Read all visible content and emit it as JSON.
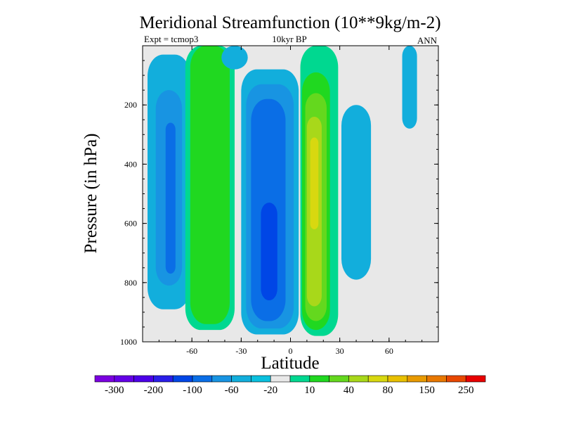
{
  "chart_data": {
    "type": "heatmap",
    "title": "Meridional Streamfunction (10**9kg/m-2)",
    "subtitle_left": "Expt = tcmop3",
    "subtitle_center": "10kyr BP",
    "subtitle_right": "ANN",
    "xlabel": "Latitude",
    "ylabel": "Pressure (in hPa)",
    "xlim": [
      -90,
      90
    ],
    "ylim": [
      1000,
      0
    ],
    "x_ticks": [
      -60,
      -30,
      0,
      30,
      60
    ],
    "y_ticks": [
      200,
      400,
      600,
      800,
      1000
    ],
    "background_color": "#e8e8e8",
    "colorbar": {
      "labels": [
        "-300",
        "-200",
        "-100",
        "-60",
        "-20",
        "10",
        "40",
        "80",
        "150",
        "250"
      ],
      "colors": [
        "#7b00e0",
        "#6400e6",
        "#4c00e8",
        "#2a1ee8",
        "#0046e6",
        "#0a6ee6",
        "#1894e2",
        "#12aedc",
        "#0ac0de",
        "#e8e8e8",
        "#00d890",
        "#20d820",
        "#64d81e",
        "#a8d81a",
        "#d8d810",
        "#e8c000",
        "#e89a00",
        "#e87800",
        "#e84800",
        "#e80000"
      ]
    },
    "cells": [
      {
        "name": "cell-nh-polar-outer",
        "color": "#12aedc",
        "lat": [
          -87,
          -61
        ],
        "p": [
          30,
          890
        ]
      },
      {
        "name": "cell-nh-polar-mid",
        "color": "#1894e2",
        "lat": [
          -82,
          -66
        ],
        "p": [
          150,
          810
        ]
      },
      {
        "name": "cell-nh-polar-core",
        "color": "#0a6ee6",
        "lat": [
          -76,
          -70
        ],
        "p": [
          260,
          770
        ]
      },
      {
        "name": "cell-ferrel-outer",
        "color": "#00d890",
        "lat": [
          -64,
          -34
        ],
        "p": [
          0,
          960
        ]
      },
      {
        "name": "cell-ferrel-core",
        "color": "#20d820",
        "lat": [
          -61,
          -37
        ],
        "p": [
          0,
          940
        ]
      },
      {
        "name": "cell-jet-band",
        "color": "#12aedc",
        "lat": [
          -42,
          -26
        ],
        "p": [
          0,
          80
        ]
      },
      {
        "name": "cell-hadley-s-l1",
        "color": "#12aedc",
        "lat": [
          -30,
          5
        ],
        "p": [
          80,
          975
        ]
      },
      {
        "name": "cell-hadley-s-l2",
        "color": "#1894e2",
        "lat": [
          -27,
          2
        ],
        "p": [
          130,
          955
        ]
      },
      {
        "name": "cell-hadley-s-l3",
        "color": "#0a6ee6",
        "lat": [
          -24,
          -3
        ],
        "p": [
          180,
          930
        ]
      },
      {
        "name": "cell-hadley-s-core",
        "color": "#0046e6",
        "lat": [
          -18,
          -8
        ],
        "p": [
          530,
          860
        ]
      },
      {
        "name": "cell-hadley-n-l1",
        "color": "#00d890",
        "lat": [
          6,
          29
        ],
        "p": [
          0,
          980
        ]
      },
      {
        "name": "cell-hadley-n-l2",
        "color": "#20d820",
        "lat": [
          7,
          24
        ],
        "p": [
          90,
          960
        ]
      },
      {
        "name": "cell-hadley-n-l3",
        "color": "#64d81e",
        "lat": [
          9,
          22
        ],
        "p": [
          160,
          930
        ]
      },
      {
        "name": "cell-hadley-n-l4",
        "color": "#a8d81a",
        "lat": [
          10,
          19
        ],
        "p": [
          240,
          880
        ]
      },
      {
        "name": "cell-hadley-n-core",
        "color": "#d8d810",
        "lat": [
          12,
          17
        ],
        "p": [
          310,
          620
        ]
      },
      {
        "name": "cell-nh-subtrop-blue",
        "color": "#12aedc",
        "lat": [
          31,
          49
        ],
        "p": [
          200,
          790
        ]
      },
      {
        "name": "cell-nh-polar-blue",
        "color": "#12aedc",
        "lat": [
          68,
          77
        ],
        "p": [
          0,
          280
        ]
      }
    ]
  }
}
